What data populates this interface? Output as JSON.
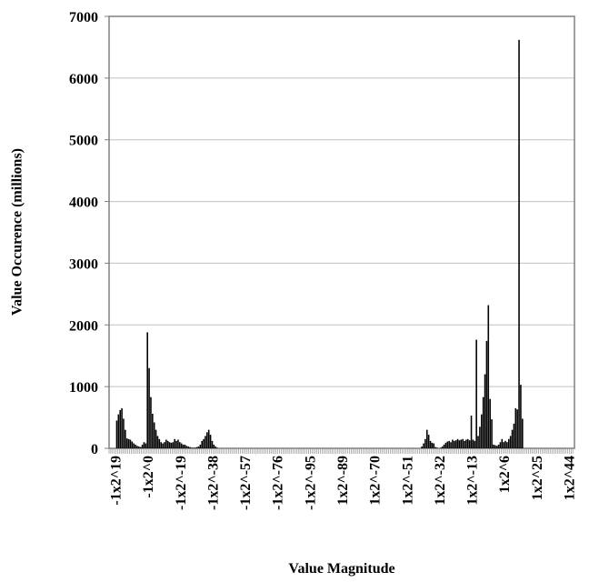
{
  "chart_data": {
    "type": "bar",
    "x_label": "Value Magnitude",
    "y_label": "Value Occurence (millions)",
    "categories": [
      null,
      null,
      null,
      "-1x2^19",
      null,
      null,
      null,
      null,
      null,
      null,
      null,
      null,
      null,
      null,
      null,
      null,
      null,
      null,
      null,
      null,
      null,
      null,
      "-1x2^0",
      null,
      null,
      null,
      null,
      null,
      null,
      null,
      null,
      null,
      null,
      null,
      null,
      null,
      null,
      null,
      null,
      null,
      null,
      "-1x2^-19",
      null,
      null,
      null,
      null,
      null,
      null,
      null,
      null,
      null,
      null,
      null,
      null,
      null,
      null,
      null,
      null,
      null,
      null,
      "-1x2^-38",
      null,
      null,
      null,
      null,
      null,
      null,
      null,
      null,
      null,
      null,
      null,
      null,
      null,
      null,
      null,
      null,
      null,
      null,
      "-1x2^-57",
      null,
      null,
      null,
      null,
      null,
      null,
      null,
      null,
      null,
      null,
      null,
      null,
      null,
      null,
      null,
      null,
      null,
      null,
      "-1x2^-76",
      null,
      null,
      null,
      null,
      null,
      null,
      null,
      null,
      null,
      null,
      null,
      null,
      null,
      null,
      null,
      null,
      null,
      null,
      "-1x2^-95",
      null,
      null,
      null,
      null,
      null,
      null,
      null,
      null,
      null,
      null,
      null,
      null,
      null,
      null,
      null,
      null,
      null,
      null,
      "1x2^-89",
      null,
      null,
      null,
      null,
      null,
      null,
      null,
      null,
      null,
      null,
      null,
      null,
      null,
      null,
      null,
      null,
      null,
      null,
      "1x2^-70",
      null,
      null,
      null,
      null,
      null,
      null,
      null,
      null,
      null,
      null,
      null,
      null,
      null,
      null,
      null,
      null,
      null,
      null,
      "1x2^-51",
      null,
      null,
      null,
      null,
      null,
      null,
      null,
      null,
      null,
      null,
      null,
      null,
      null,
      null,
      null,
      null,
      null,
      null,
      "1x2^-32",
      null,
      null,
      null,
      null,
      null,
      null,
      null,
      null,
      null,
      null,
      null,
      null,
      null,
      null,
      null,
      null,
      null,
      null,
      "1x2^-13",
      null,
      null,
      null,
      null,
      null,
      null,
      null,
      null,
      null,
      null,
      null,
      null,
      null,
      null,
      null,
      null,
      null,
      null,
      "1x2^6",
      null,
      null,
      null,
      null,
      null,
      null,
      null,
      null,
      null,
      null,
      null,
      null,
      null,
      null,
      null,
      null,
      null,
      null,
      "1x2^25",
      null,
      null,
      null,
      null,
      null,
      null,
      null,
      null,
      null,
      null,
      null,
      null,
      null,
      null,
      null,
      null,
      null,
      null,
      "1x2^44",
      null,
      null,
      null
    ],
    "values": [
      0,
      0,
      0,
      0,
      450,
      550,
      620,
      650,
      480,
      300,
      160,
      150,
      140,
      110,
      80,
      60,
      40,
      30,
      20,
      60,
      100,
      80,
      1880,
      1300,
      830,
      560,
      420,
      300,
      200,
      150,
      100,
      80,
      100,
      140,
      120,
      100,
      90,
      100,
      150,
      120,
      140,
      100,
      80,
      60,
      60,
      40,
      30,
      20,
      10,
      10,
      10,
      20,
      30,
      60,
      120,
      150,
      200,
      260,
      300,
      220,
      120,
      60,
      30,
      10,
      0,
      0,
      0,
      0,
      0,
      0,
      0,
      0,
      0,
      0,
      0,
      0,
      0,
      0,
      0,
      0,
      0,
      0,
      0,
      0,
      0,
      0,
      0,
      0,
      0,
      0,
      0,
      0,
      0,
      0,
      0,
      0,
      0,
      0,
      0,
      0,
      0,
      0,
      0,
      0,
      0,
      0,
      0,
      0,
      0,
      0,
      0,
      0,
      0,
      0,
      0,
      0,
      0,
      0,
      0,
      0,
      0,
      0,
      0,
      0,
      0,
      0,
      0,
      0,
      0,
      0,
      0,
      0,
      0,
      0,
      0,
      0,
      0,
      0,
      0,
      0,
      0,
      0,
      0,
      0,
      0,
      0,
      0,
      0,
      0,
      0,
      0,
      0,
      0,
      0,
      0,
      0,
      0,
      0,
      0,
      0,
      0,
      0,
      0,
      0,
      0,
      0,
      0,
      0,
      0,
      0,
      0,
      0,
      0,
      0,
      0,
      0,
      0,
      0,
      0,
      0,
      0,
      0,
      0,
      30,
      80,
      150,
      300,
      220,
      120,
      90,
      80,
      20,
      10,
      0,
      10,
      30,
      60,
      90,
      110,
      120,
      100,
      140,
      120,
      130,
      150,
      130,
      140,
      150,
      120,
      140,
      150,
      130,
      530,
      140,
      120,
      1760,
      200,
      350,
      550,
      830,
      1200,
      1740,
      2320,
      800,
      470,
      60,
      50,
      40,
      60,
      100,
      150,
      100,
      120,
      100,
      150,
      200,
      300,
      400,
      650,
      630,
      6620,
      1030,
      480,
      0,
      0,
      0,
      0,
      0,
      0,
      0,
      0,
      0,
      0,
      0,
      0,
      0,
      0,
      0,
      0,
      0,
      0,
      0,
      0,
      0,
      0,
      0,
      0,
      0,
      0,
      0,
      0,
      0,
      0
    ],
    "color": "#000000",
    "ylim": [
      0,
      7000
    ],
    "yticks": [
      0,
      1000,
      2000,
      3000,
      4000,
      5000,
      6000,
      7000
    ],
    "grid": true
  }
}
